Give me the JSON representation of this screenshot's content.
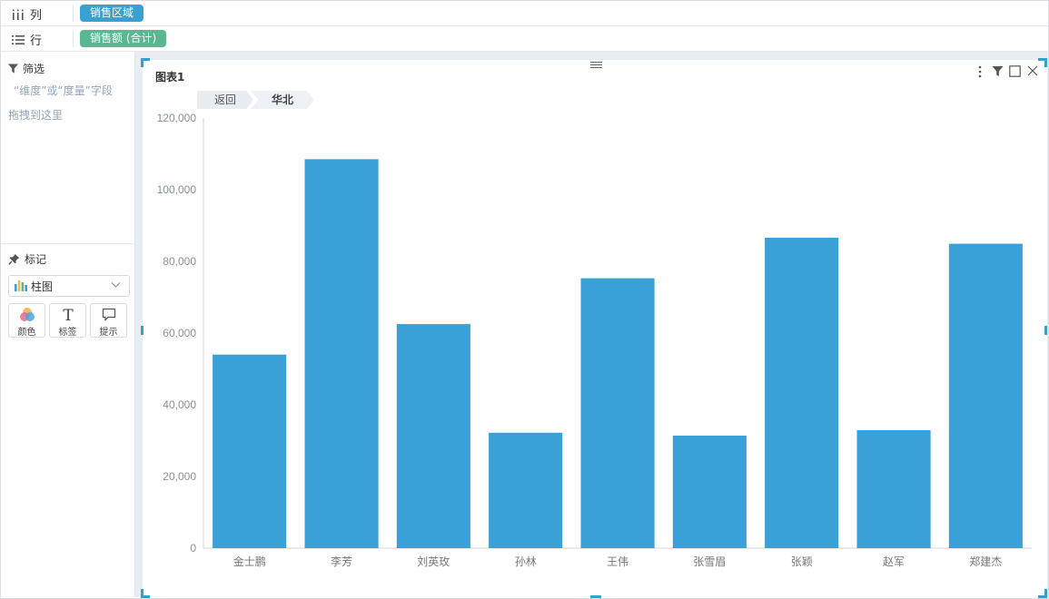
{
  "shelves": {
    "columns": {
      "label": "列",
      "field": "销售区域"
    },
    "rows": {
      "label": "行",
      "field": "销售额 (合计)"
    }
  },
  "filter_panel": {
    "title": "筛选",
    "hint_line1": "“维度”或“度量”字段",
    "hint_line2": "拖拽到这里"
  },
  "marks_panel": {
    "title": "标记",
    "mark_type": "柱图",
    "buttons": [
      {
        "label": "颜色",
        "icon": "color-icon"
      },
      {
        "label": "标签",
        "icon": "text-icon"
      },
      {
        "label": "提示",
        "icon": "tooltip-icon"
      }
    ]
  },
  "chart_card": {
    "title": "图表1",
    "breadcrumb": {
      "back": "返回",
      "current": "华北"
    },
    "toolbar": [
      "more-icon",
      "filter-icon",
      "maximize-icon",
      "close-icon"
    ]
  },
  "colors": {
    "bar": "#3aa0d8",
    "accent": "#2fa3cf",
    "pill_blue": "#3aa0d1",
    "pill_green": "#59b88f"
  },
  "chart_data": {
    "type": "bar",
    "categories": [
      "金士鹏",
      "李芳",
      "刘英玫",
      "孙林",
      "王伟",
      "张雪眉",
      "张颖",
      "赵军",
      "郑建杰"
    ],
    "values": [
      54000,
      108500,
      62500,
      32200,
      75300,
      31400,
      86600,
      32900,
      84900
    ],
    "ylim": [
      0,
      120000
    ],
    "yticks": [
      0,
      20000,
      40000,
      60000,
      80000,
      100000,
      120000
    ],
    "ytick_labels": [
      "0",
      "20,000",
      "40,000",
      "60,000",
      "80,000",
      "100,000",
      "120,000"
    ],
    "grid": false,
    "legend": "none"
  }
}
